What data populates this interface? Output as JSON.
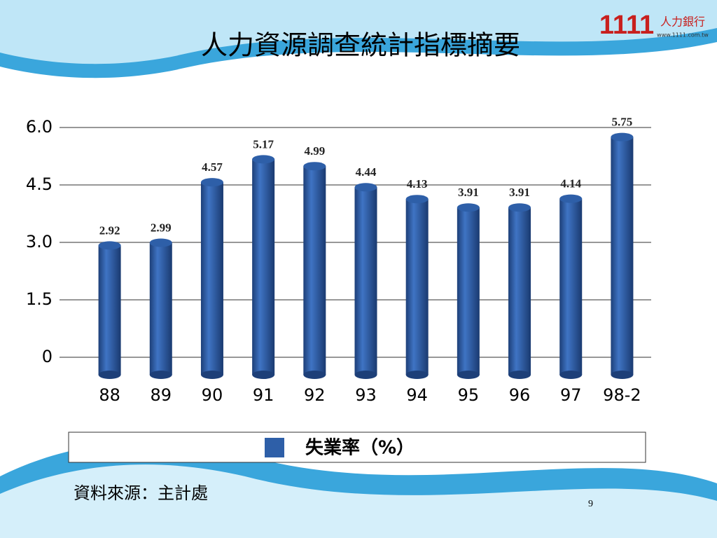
{
  "chart_data": {
    "type": "bar",
    "title": "人力資源調查統計指標摘要",
    "categories": [
      "88",
      "89",
      "90",
      "91",
      "92",
      "93",
      "94",
      "95",
      "96",
      "97",
      "98-2"
    ],
    "series": [
      {
        "name": "失業率（%）",
        "color": "#2e5fa8",
        "values": [
          2.92,
          2.99,
          4.57,
          5.17,
          4.99,
          4.44,
          4.13,
          3.91,
          3.91,
          4.14,
          5.75
        ]
      }
    ],
    "ylim": [
      0,
      6
    ],
    "yticks": [
      0,
      1.5,
      {
        "value": 3,
        "label": "3.0"
      },
      4.5,
      {
        "value": 6,
        "label": "6.0"
      }
    ],
    "grid": true
  },
  "slide": {
    "source": "資料來源：主計處",
    "page_number": "9",
    "logo": {
      "number": "1111",
      "name": "人力銀行",
      "url": "www.1111.com.tw"
    }
  }
}
